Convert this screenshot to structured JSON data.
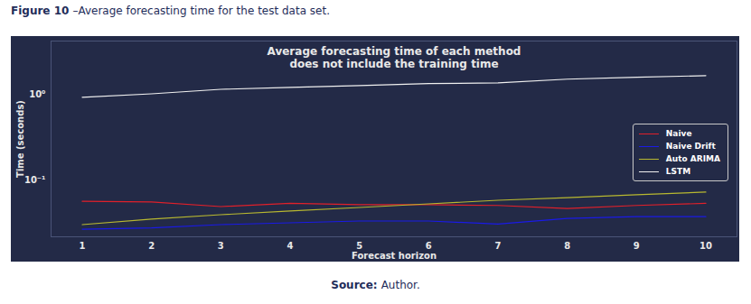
{
  "figure": {
    "label": "Figure 10",
    "caption": "–Average forecasting time for the test data set."
  },
  "source": {
    "label": "Source:",
    "text": "Author."
  },
  "chart_data": {
    "type": "line",
    "title": "Average forecasting time of each method\ndoes not include the training time",
    "x_label": "Forecast horizon",
    "y_label": "Time (seconds)",
    "x": [
      1,
      2,
      3,
      4,
      5,
      6,
      7,
      8,
      9,
      10
    ],
    "series": [
      {
        "name": "Naive",
        "color": "#e0202a",
        "values": [
          0.057,
          0.056,
          0.0495,
          0.054,
          0.052,
          0.052,
          0.051,
          0.047,
          0.051,
          0.054
        ]
      },
      {
        "name": "Naive Drift",
        "color": "#1a1ae6",
        "values": [
          0.027,
          0.028,
          0.0305,
          0.032,
          0.0336,
          0.0336,
          0.031,
          0.0361,
          0.0378,
          0.0378
        ]
      },
      {
        "name": "Auto ARIMA",
        "color": "#b8b830",
        "values": [
          0.0305,
          0.0353,
          0.0398,
          0.0439,
          0.0483,
          0.0532,
          0.0586,
          0.063,
          0.0679,
          0.073
        ]
      },
      {
        "name": "LSTM",
        "color": "#f0f0f0",
        "values": [
          0.93,
          1.02,
          1.15,
          1.21,
          1.27,
          1.34,
          1.37,
          1.51,
          1.59,
          1.66
        ]
      }
    ],
    "xlim": [
      0.55,
      10.45
    ],
    "xticks": [
      1,
      2,
      3,
      4,
      5,
      6,
      7,
      8,
      9,
      10
    ],
    "ylim": [
      0.022,
      4.2
    ],
    "yticks": [
      {
        "value": 1,
        "label": "10⁰"
      },
      {
        "value": 0.1,
        "label": "10⁻¹"
      }
    ],
    "log": "y",
    "grid": false,
    "legend": "right"
  }
}
